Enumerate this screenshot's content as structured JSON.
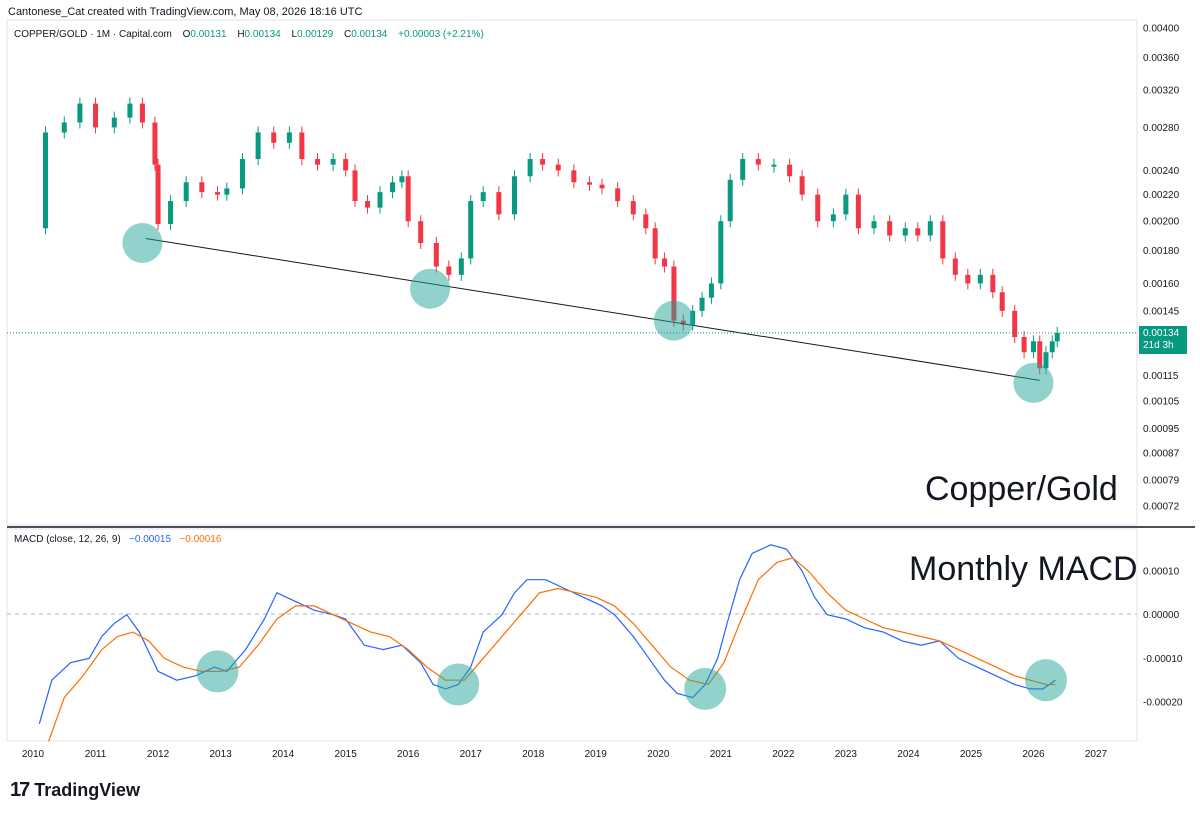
{
  "header": {
    "credit": "Cantonese_Cat created with TradingView.com, May 08, 2026 18:16 UTC"
  },
  "legend": {
    "symbol": "COPPER/GOLD · 1M · Capital.com",
    "o_label": "O",
    "o_value": "0.00131",
    "h_label": "H",
    "h_value": "0.00134",
    "l_label": "L",
    "l_value": "0.00129",
    "c_label": "C",
    "c_value": "0.00134",
    "change": "+0.00003 (+2.21%)"
  },
  "macd_legend": {
    "label": "MACD (close, 12, 26, 9)",
    "macd_value": "−0.00015",
    "signal_value": "−0.00016"
  },
  "annotations": {
    "price_title": "Copper/Gold",
    "macd_title": "Monthly MACD"
  },
  "price_box": {
    "price": "0.00134",
    "countdown": "21d 3h"
  },
  "brand": {
    "mark": "17",
    "name": "TradingView"
  },
  "colors": {
    "up": "#089981",
    "down": "#f23645",
    "macd": "#2962ff",
    "signal": "#ff6d00",
    "highlight": "#26a69a"
  },
  "chart_data": [
    {
      "type": "candlestick",
      "title": "COPPER/GOLD · 1M · Capital.com",
      "scale": "log",
      "ylim": [
        0.00068,
        0.0041
      ],
      "y_ticks": [
        "0.00400",
        "0.00360",
        "0.00320",
        "0.00280",
        "0.00240",
        "0.00220",
        "0.00200",
        "0.00180",
        "0.00160",
        "0.00145",
        "0.00134",
        "0.00115",
        "0.00105",
        "0.00095",
        "0.00087",
        "0.00079",
        "0.00072"
      ],
      "x_ticks": [
        "2010",
        "2011",
        "2012",
        "2013",
        "2014",
        "2015",
        "2016",
        "2017",
        "2018",
        "2019",
        "2020",
        "2021",
        "2022",
        "2023",
        "2024",
        "2025",
        "2026",
        "2027"
      ],
      "series": [
        {
          "name": "COPPER/GOLD",
          "points": [
            {
              "t": 2010.0,
              "v": 0.00195
            },
            {
              "t": 2010.2,
              "v": 0.00275
            },
            {
              "t": 2010.5,
              "v": 0.00285
            },
            {
              "t": 2010.75,
              "v": 0.00305
            },
            {
              "t": 2011.0,
              "v": 0.0028
            },
            {
              "t": 2011.3,
              "v": 0.0029
            },
            {
              "t": 2011.55,
              "v": 0.00305
            },
            {
              "t": 2011.75,
              "v": 0.00285
            },
            {
              "t": 2011.95,
              "v": 0.00245
            },
            {
              "t": 2012.0,
              "v": 0.00198
            },
            {
              "t": 2012.2,
              "v": 0.00215
            },
            {
              "t": 2012.45,
              "v": 0.0023
            },
            {
              "t": 2012.7,
              "v": 0.00222
            },
            {
              "t": 2012.95,
              "v": 0.0022
            },
            {
              "t": 2013.1,
              "v": 0.00225
            },
            {
              "t": 2013.35,
              "v": 0.0025
            },
            {
              "t": 2013.6,
              "v": 0.00275
            },
            {
              "t": 2013.85,
              "v": 0.00265
            },
            {
              "t": 2014.1,
              "v": 0.00275
            },
            {
              "t": 2014.3,
              "v": 0.0025
            },
            {
              "t": 2014.55,
              "v": 0.00245
            },
            {
              "t": 2014.8,
              "v": 0.0025
            },
            {
              "t": 2015.0,
              "v": 0.0024
            },
            {
              "t": 2015.15,
              "v": 0.00215
            },
            {
              "t": 2015.35,
              "v": 0.0021
            },
            {
              "t": 2015.55,
              "v": 0.00222
            },
            {
              "t": 2015.75,
              "v": 0.0023
            },
            {
              "t": 2015.9,
              "v": 0.00235
            },
            {
              "t": 2016.0,
              "v": 0.002
            },
            {
              "t": 2016.2,
              "v": 0.00185
            },
            {
              "t": 2016.45,
              "v": 0.0017
            },
            {
              "t": 2016.65,
              "v": 0.00165
            },
            {
              "t": 2016.85,
              "v": 0.00175
            },
            {
              "t": 2017.0,
              "v": 0.00215
            },
            {
              "t": 2017.2,
              "v": 0.00222
            },
            {
              "t": 2017.45,
              "v": 0.00205
            },
            {
              "t": 2017.7,
              "v": 0.00235
            },
            {
              "t": 2017.95,
              "v": 0.0025
            },
            {
              "t": 2018.15,
              "v": 0.00245
            },
            {
              "t": 2018.4,
              "v": 0.0024
            },
            {
              "t": 2018.65,
              "v": 0.0023
            },
            {
              "t": 2018.9,
              "v": 0.00228
            },
            {
              "t": 2019.1,
              "v": 0.00225
            },
            {
              "t": 2019.35,
              "v": 0.00215
            },
            {
              "t": 2019.6,
              "v": 0.00205
            },
            {
              "t": 2019.8,
              "v": 0.00195
            },
            {
              "t": 2019.95,
              "v": 0.00175
            },
            {
              "t": 2020.1,
              "v": 0.0017
            },
            {
              "t": 2020.25,
              "v": 0.0014
            },
            {
              "t": 2020.4,
              "v": 0.00138
            },
            {
              "t": 2020.55,
              "v": 0.00145
            },
            {
              "t": 2020.7,
              "v": 0.00152
            },
            {
              "t": 2020.85,
              "v": 0.0016
            },
            {
              "t": 2021.0,
              "v": 0.002
            },
            {
              "t": 2021.15,
              "v": 0.00232
            },
            {
              "t": 2021.35,
              "v": 0.0025
            },
            {
              "t": 2021.6,
              "v": 0.00245
            },
            {
              "t": 2021.85,
              "v": 0.00245
            },
            {
              "t": 2022.1,
              "v": 0.00235
            },
            {
              "t": 2022.3,
              "v": 0.0022
            },
            {
              "t": 2022.55,
              "v": 0.002
            },
            {
              "t": 2022.8,
              "v": 0.00205
            },
            {
              "t": 2023.0,
              "v": 0.0022
            },
            {
              "t": 2023.2,
              "v": 0.00195
            },
            {
              "t": 2023.45,
              "v": 0.002
            },
            {
              "t": 2023.7,
              "v": 0.0019
            },
            {
              "t": 2023.95,
              "v": 0.00195
            },
            {
              "t": 2024.15,
              "v": 0.0019
            },
            {
              "t": 2024.35,
              "v": 0.002
            },
            {
              "t": 2024.55,
              "v": 0.00175
            },
            {
              "t": 2024.75,
              "v": 0.00165
            },
            {
              "t": 2024.95,
              "v": 0.0016
            },
            {
              "t": 2025.15,
              "v": 0.00165
            },
            {
              "t": 2025.35,
              "v": 0.00155
            },
            {
              "t": 2025.5,
              "v": 0.00145
            },
            {
              "t": 2025.7,
              "v": 0.00132
            },
            {
              "t": 2025.85,
              "v": 0.00125
            },
            {
              "t": 2026.0,
              "v": 0.0013
            },
            {
              "t": 2026.1,
              "v": 0.00118
            },
            {
              "t": 2026.2,
              "v": 0.00125
            },
            {
              "t": 2026.3,
              "v": 0.0013
            },
            {
              "t": 2026.38,
              "v": 0.00134
            }
          ]
        }
      ],
      "trendline": [
        {
          "t": 2011.8,
          "v": 0.00188
        },
        {
          "t": 2026.1,
          "v": 0.00113
        }
      ],
      "last_price": 0.00134,
      "highlights": [
        {
          "t": 2011.75,
          "v": 0.00185
        },
        {
          "t": 2016.35,
          "v": 0.00157
        },
        {
          "t": 2020.25,
          "v": 0.0014
        },
        {
          "t": 2026.0,
          "v": 0.00112
        }
      ]
    },
    {
      "type": "line",
      "title": "MACD (close, 12, 26, 9)",
      "ylim": [
        -0.00025,
        0.00015
      ],
      "y_ticks": [
        "0.00010",
        "0.00000",
        "-0.00010",
        "-0.00020"
      ],
      "series": [
        {
          "name": "MACD",
          "points": [
            {
              "t": 2010.1,
              "v": -0.00025
            },
            {
              "t": 2010.3,
              "v": -0.00015
            },
            {
              "t": 2010.6,
              "v": -0.00011
            },
            {
              "t": 2010.9,
              "v": -0.0001
            },
            {
              "t": 2011.1,
              "v": -5e-05
            },
            {
              "t": 2011.3,
              "v": -2e-05
            },
            {
              "t": 2011.5,
              "v": 0.0
            },
            {
              "t": 2011.7,
              "v": -4e-05
            },
            {
              "t": 2012.0,
              "v": -0.00013
            },
            {
              "t": 2012.3,
              "v": -0.00015
            },
            {
              "t": 2012.6,
              "v": -0.00014
            },
            {
              "t": 2012.9,
              "v": -0.00012
            },
            {
              "t": 2013.1,
              "v": -0.00013
            },
            {
              "t": 2013.4,
              "v": -8e-05
            },
            {
              "t": 2013.7,
              "v": -1e-05
            },
            {
              "t": 2013.9,
              "v": 5e-05
            },
            {
              "t": 2014.2,
              "v": 3e-05
            },
            {
              "t": 2014.5,
              "v": 1e-05
            },
            {
              "t": 2014.8,
              "v": 0.0
            },
            {
              "t": 2015.0,
              "v": -1e-05
            },
            {
              "t": 2015.3,
              "v": -7e-05
            },
            {
              "t": 2015.6,
              "v": -8e-05
            },
            {
              "t": 2015.9,
              "v": -7e-05
            },
            {
              "t": 2016.2,
              "v": -0.00011
            },
            {
              "t": 2016.4,
              "v": -0.00016
            },
            {
              "t": 2016.6,
              "v": -0.00017
            },
            {
              "t": 2016.8,
              "v": -0.00016
            },
            {
              "t": 2017.0,
              "v": -0.00012
            },
            {
              "t": 2017.2,
              "v": -4e-05
            },
            {
              "t": 2017.5,
              "v": 0.0
            },
            {
              "t": 2017.7,
              "v": 5e-05
            },
            {
              "t": 2017.9,
              "v": 8e-05
            },
            {
              "t": 2018.2,
              "v": 8e-05
            },
            {
              "t": 2018.5,
              "v": 6e-05
            },
            {
              "t": 2018.8,
              "v": 4e-05
            },
            {
              "t": 2019.1,
              "v": 2e-05
            },
            {
              "t": 2019.3,
              "v": 0.0
            },
            {
              "t": 2019.6,
              "v": -5e-05
            },
            {
              "t": 2019.9,
              "v": -0.00011
            },
            {
              "t": 2020.1,
              "v": -0.00015
            },
            {
              "t": 2020.3,
              "v": -0.00018
            },
            {
              "t": 2020.55,
              "v": -0.00019
            },
            {
              "t": 2020.75,
              "v": -0.00016
            },
            {
              "t": 2020.95,
              "v": -0.0001
            },
            {
              "t": 2021.1,
              "v": -2e-05
            },
            {
              "t": 2021.3,
              "v": 8e-05
            },
            {
              "t": 2021.5,
              "v": 0.00014
            },
            {
              "t": 2021.8,
              "v": 0.00016
            },
            {
              "t": 2022.05,
              "v": 0.00015
            },
            {
              "t": 2022.3,
              "v": 0.0001
            },
            {
              "t": 2022.5,
              "v": 4e-05
            },
            {
              "t": 2022.7,
              "v": 0.0
            },
            {
              "t": 2023.0,
              "v": -1e-05
            },
            {
              "t": 2023.3,
              "v": -3e-05
            },
            {
              "t": 2023.6,
              "v": -4e-05
            },
            {
              "t": 2023.9,
              "v": -6e-05
            },
            {
              "t": 2024.2,
              "v": -7e-05
            },
            {
              "t": 2024.5,
              "v": -6e-05
            },
            {
              "t": 2024.8,
              "v": -0.0001
            },
            {
              "t": 2025.1,
              "v": -0.00012
            },
            {
              "t": 2025.4,
              "v": -0.00014
            },
            {
              "t": 2025.7,
              "v": -0.00016
            },
            {
              "t": 2025.95,
              "v": -0.00017
            },
            {
              "t": 2026.15,
              "v": -0.00017
            },
            {
              "t": 2026.35,
              "v": -0.00015
            }
          ]
        },
        {
          "name": "Signal",
          "points": [
            {
              "t": 2010.25,
              "v": -0.00029
            },
            {
              "t": 2010.5,
              "v": -0.00019
            },
            {
              "t": 2010.8,
              "v": -0.00014
            },
            {
              "t": 2011.1,
              "v": -8e-05
            },
            {
              "t": 2011.35,
              "v": -5e-05
            },
            {
              "t": 2011.6,
              "v": -4e-05
            },
            {
              "t": 2011.85,
              "v": -6e-05
            },
            {
              "t": 2012.1,
              "v": -0.0001
            },
            {
              "t": 2012.4,
              "v": -0.00012
            },
            {
              "t": 2012.7,
              "v": -0.00013
            },
            {
              "t": 2013.0,
              "v": -0.00013
            },
            {
              "t": 2013.3,
              "v": -0.00012
            },
            {
              "t": 2013.6,
              "v": -7e-05
            },
            {
              "t": 2013.9,
              "v": -1e-05
            },
            {
              "t": 2014.2,
              "v": 2e-05
            },
            {
              "t": 2014.5,
              "v": 2e-05
            },
            {
              "t": 2014.8,
              "v": 0.0
            },
            {
              "t": 2015.1,
              "v": -2e-05
            },
            {
              "t": 2015.4,
              "v": -4e-05
            },
            {
              "t": 2015.7,
              "v": -5e-05
            },
            {
              "t": 2016.0,
              "v": -8e-05
            },
            {
              "t": 2016.3,
              "v": -0.00012
            },
            {
              "t": 2016.6,
              "v": -0.00015
            },
            {
              "t": 2016.9,
              "v": -0.00015
            },
            {
              "t": 2017.2,
              "v": -0.0001
            },
            {
              "t": 2017.5,
              "v": -5e-05
            },
            {
              "t": 2017.8,
              "v": 0.0
            },
            {
              "t": 2018.1,
              "v": 5e-05
            },
            {
              "t": 2018.4,
              "v": 6e-05
            },
            {
              "t": 2018.7,
              "v": 5e-05
            },
            {
              "t": 2019.0,
              "v": 4e-05
            },
            {
              "t": 2019.3,
              "v": 2e-05
            },
            {
              "t": 2019.6,
              "v": -2e-05
            },
            {
              "t": 2019.9,
              "v": -7e-05
            },
            {
              "t": 2020.2,
              "v": -0.00012
            },
            {
              "t": 2020.5,
              "v": -0.00015
            },
            {
              "t": 2020.8,
              "v": -0.00016
            },
            {
              "t": 2021.05,
              "v": -0.00011
            },
            {
              "t": 2021.3,
              "v": -2e-05
            },
            {
              "t": 2021.6,
              "v": 8e-05
            },
            {
              "t": 2021.9,
              "v": 0.00012
            },
            {
              "t": 2022.15,
              "v": 0.00013
            },
            {
              "t": 2022.4,
              "v": 0.0001
            },
            {
              "t": 2022.7,
              "v": 5e-05
            },
            {
              "t": 2023.0,
              "v": 1e-05
            },
            {
              "t": 2023.3,
              "v": -1e-05
            },
            {
              "t": 2023.6,
              "v": -3e-05
            },
            {
              "t": 2023.9,
              "v": -4e-05
            },
            {
              "t": 2024.2,
              "v": -5e-05
            },
            {
              "t": 2024.5,
              "v": -6e-05
            },
            {
              "t": 2024.8,
              "v": -8e-05
            },
            {
              "t": 2025.1,
              "v": -0.0001
            },
            {
              "t": 2025.4,
              "v": -0.00012
            },
            {
              "t": 2025.7,
              "v": -0.00014
            },
            {
              "t": 2025.95,
              "v": -0.00015
            },
            {
              "t": 2026.2,
              "v": -0.00016
            },
            {
              "t": 2026.35,
              "v": -0.00016
            }
          ]
        }
      ],
      "highlights": [
        {
          "t": 2012.95,
          "v": -0.00013
        },
        {
          "t": 2016.8,
          "v": -0.00016
        },
        {
          "t": 2020.75,
          "v": -0.00017
        },
        {
          "t": 2026.2,
          "v": -0.00015
        }
      ]
    }
  ]
}
